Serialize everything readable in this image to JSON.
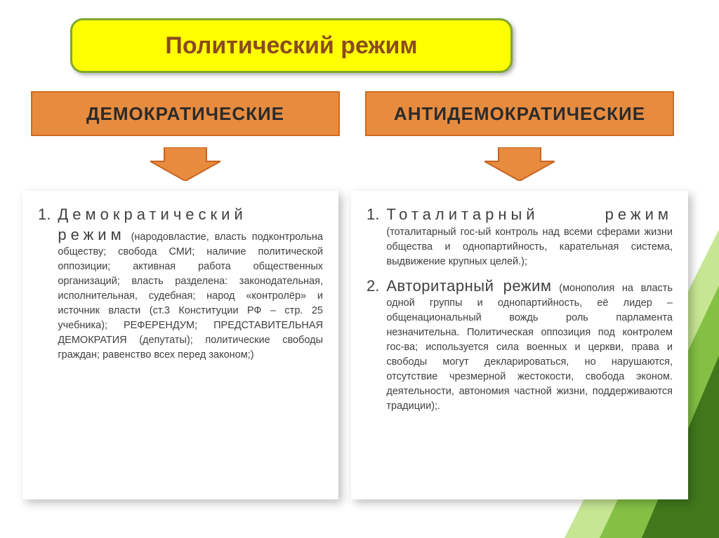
{
  "colors": {
    "title_bg": "#ffff00",
    "title_border": "#7fa82e",
    "title_text": "#8a4a1f",
    "header_bg": "#e78b3f",
    "header_border": "#d06a1f",
    "header_text": "#2b2b2b",
    "arrow_fill": "#e78b3f",
    "arrow_border": "#c86420",
    "panel_bg": "#ffffff",
    "body_text": "#404040",
    "corner_light": "#b8e078",
    "corner_mid": "#78b836",
    "corner_dark": "#3a7018"
  },
  "title": "Политический   режим",
  "headers": {
    "left": "ДЕМОКРАТИЧЕСКИЕ",
    "right": "АНТИДЕМОКРАТИЧЕСКИЕ"
  },
  "left_items": [
    {
      "num": "1.",
      "lead": "Демократический режим",
      "lead_wide": true,
      "detail": " (народовластие, власть подконтрольна обществу; свобода СМИ; наличие политической оппозиции; активная работа общественных организаций; власть разделена: законодательная, исполнительная, судебная; народ «контролёр» и источник власти (ст.3 Конституции РФ – стр. 25 учебника); РЕФЕРЕНДУМ; ПРЕДСТАВИТЕЛЬНАЯ ДЕМОКРАТИЯ (депутаты); политические свободы граждан; равенство всех перед законом;)"
    }
  ],
  "right_items": [
    {
      "num": "1.",
      "lead": "Тоталитарный режим",
      "lead_wide": true,
      "detail": " (тоталитарный гос-ый контроль над всеми сферами жизни общества и однопартийность, карательная система, выдвижение крупных целей.);"
    },
    {
      "num": "2.",
      "lead": "Авторитарный режим",
      "lead_wide": false,
      "detail": " (монополия на власть одной группы и однопартийность,  её лидер – общенациональный вождь роль парламента незначительна. Политическая оппозиция под контролем гос-ва;  используется сила военных и церкви, права и свободы могут декларироваться, но нарушаются, отсутствие чрезмерной жестокости, свобода эконом. деятельности, автономия частной жизни, поддерживаются традиции);."
    }
  ]
}
